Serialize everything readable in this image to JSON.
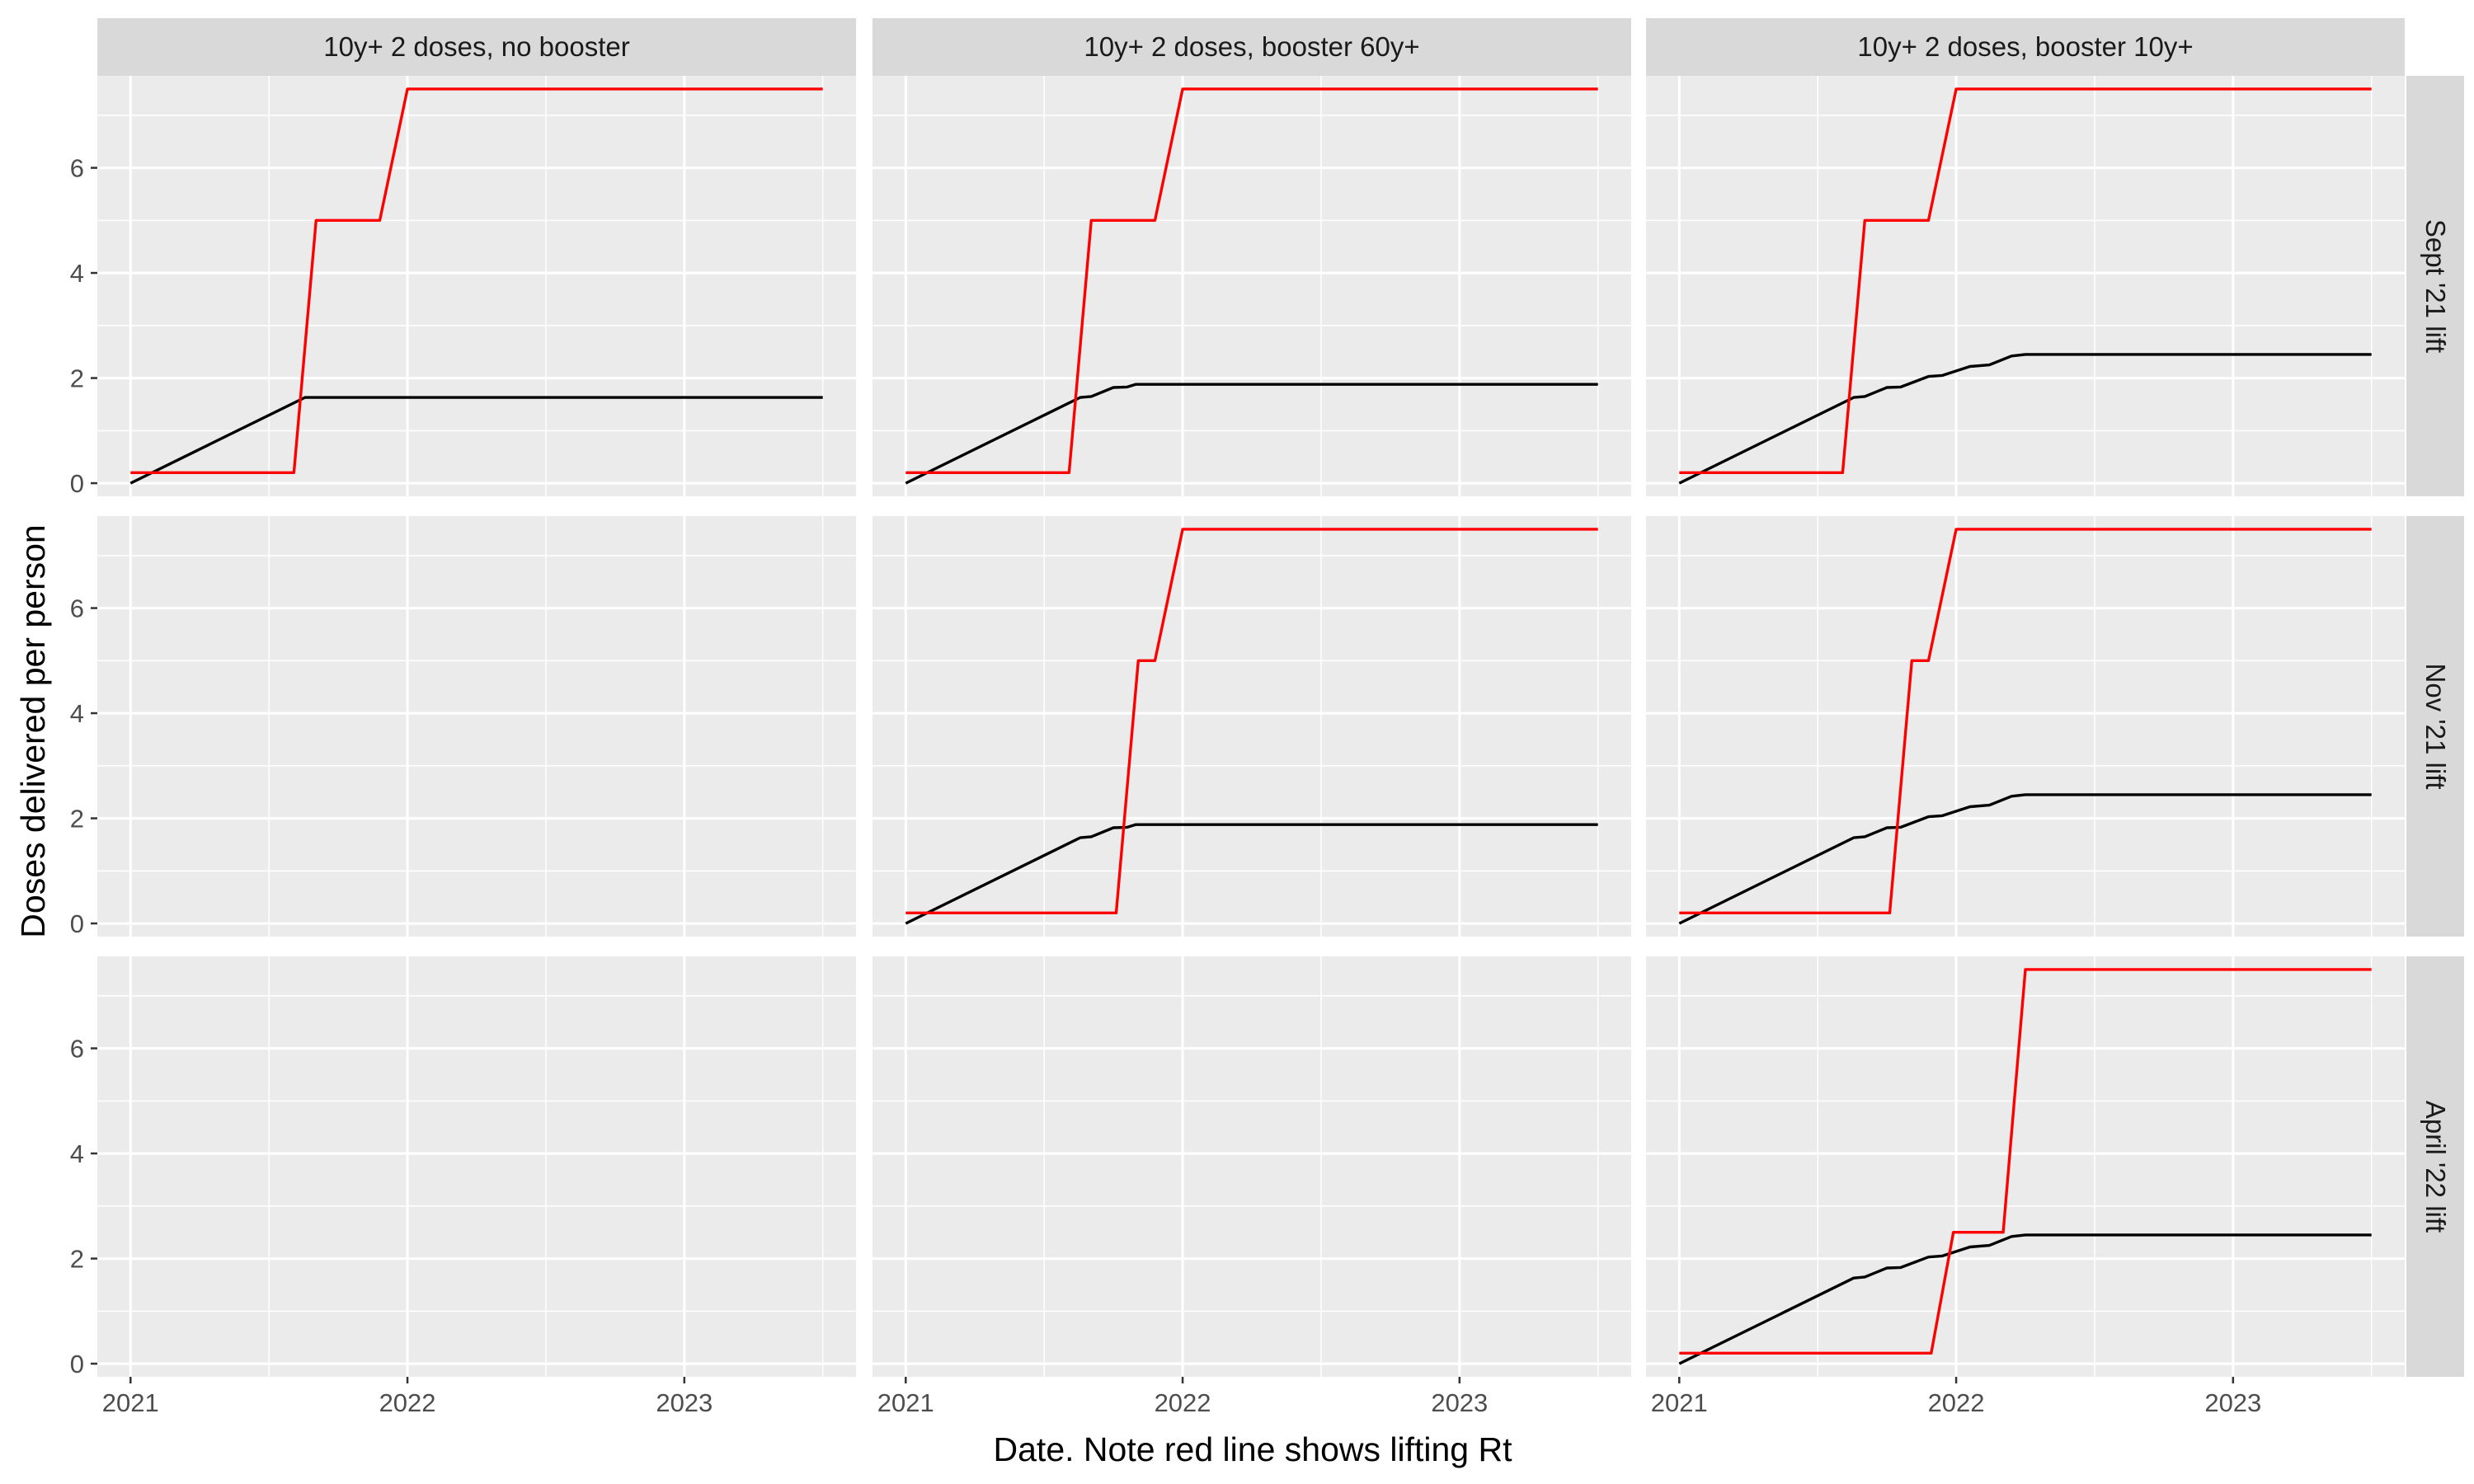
{
  "chart_data": {
    "type": "line",
    "xlabel": "Date. Note red line shows lifting Rt",
    "ylabel": "Doses delivered per person",
    "xlim": [
      2020.88,
      2023.62
    ],
    "ylim": [
      -0.25,
      7.75
    ],
    "x_ticks": [
      2021,
      2022,
      2023
    ],
    "x_tick_labels": [
      "2021",
      "2022",
      "2023"
    ],
    "y_ticks": [
      0,
      2,
      4,
      6
    ],
    "y_tick_labels": [
      "0",
      "2",
      "4",
      "6"
    ],
    "grid": true,
    "columns": [
      "10y+ 2 doses, no booster",
      "10y+ 2 doses, booster 60y+",
      "10y+ 2 doses, booster 10y+"
    ],
    "rows": [
      "Sept '21 lift",
      "Nov '21 lift",
      "April '22 lift"
    ],
    "series_colors": {
      "lifting_rt": "#ff0000",
      "doses": "#000000"
    },
    "panels": [
      {
        "row": 0,
        "col": 0,
        "lifting_rt": {
          "x": [
            2021.0,
            2021.59,
            2021.67,
            2021.9,
            2022.0,
            2023.5
          ],
          "y": [
            0.2,
            0.2,
            5.0,
            5.0,
            7.5,
            7.5
          ]
        },
        "doses": {
          "x": [
            2021.0,
            2021.63,
            2023.5
          ],
          "y": [
            0.0,
            1.63,
            1.63
          ]
        }
      },
      {
        "row": 0,
        "col": 1,
        "lifting_rt": {
          "x": [
            2021.0,
            2021.59,
            2021.67,
            2021.9,
            2022.0,
            2023.5
          ],
          "y": [
            0.2,
            0.2,
            5.0,
            5.0,
            7.5,
            7.5
          ]
        },
        "doses": {
          "x": [
            2021.0,
            2021.63,
            2021.67,
            2021.75,
            2021.8,
            2021.83,
            2023.5
          ],
          "y": [
            0.0,
            1.63,
            1.65,
            1.82,
            1.83,
            1.88,
            1.88
          ]
        }
      },
      {
        "row": 0,
        "col": 2,
        "lifting_rt": {
          "x": [
            2021.0,
            2021.59,
            2021.67,
            2021.9,
            2022.0,
            2023.5
          ],
          "y": [
            0.2,
            0.2,
            5.0,
            5.0,
            7.5,
            7.5
          ]
        },
        "doses": {
          "x": [
            2021.0,
            2021.63,
            2021.67,
            2021.75,
            2021.8,
            2021.9,
            2021.95,
            2022.05,
            2022.12,
            2022.2,
            2022.25,
            2023.5
          ],
          "y": [
            0.0,
            1.63,
            1.65,
            1.82,
            1.83,
            2.03,
            2.05,
            2.22,
            2.25,
            2.42,
            2.45,
            2.45
          ]
        }
      },
      {
        "row": 1,
        "col": 0,
        "lifting_rt": null,
        "doses": null
      },
      {
        "row": 1,
        "col": 1,
        "lifting_rt": {
          "x": [
            2021.0,
            2021.76,
            2021.84,
            2021.9,
            2022.0,
            2023.5
          ],
          "y": [
            0.2,
            0.2,
            5.0,
            5.0,
            7.5,
            7.5
          ]
        },
        "doses": {
          "x": [
            2021.0,
            2021.63,
            2021.67,
            2021.75,
            2021.8,
            2021.83,
            2023.5
          ],
          "y": [
            0.0,
            1.63,
            1.65,
            1.82,
            1.83,
            1.88,
            1.88
          ]
        }
      },
      {
        "row": 1,
        "col": 2,
        "lifting_rt": {
          "x": [
            2021.0,
            2021.76,
            2021.84,
            2021.9,
            2022.0,
            2023.5
          ],
          "y": [
            0.2,
            0.2,
            5.0,
            5.0,
            7.5,
            7.5
          ]
        },
        "doses": {
          "x": [
            2021.0,
            2021.63,
            2021.67,
            2021.75,
            2021.8,
            2021.9,
            2021.95,
            2022.05,
            2022.12,
            2022.2,
            2022.25,
            2023.5
          ],
          "y": [
            0.0,
            1.63,
            1.65,
            1.82,
            1.83,
            2.03,
            2.05,
            2.22,
            2.25,
            2.42,
            2.45,
            2.45
          ]
        }
      },
      {
        "row": 2,
        "col": 0,
        "lifting_rt": null,
        "doses": null
      },
      {
        "row": 2,
        "col": 1,
        "lifting_rt": null,
        "doses": null
      },
      {
        "row": 2,
        "col": 2,
        "lifting_rt": {
          "x": [
            2021.0,
            2021.91,
            2021.99,
            2022.17,
            2022.25,
            2023.5
          ],
          "y": [
            0.2,
            0.2,
            2.5,
            2.5,
            7.5,
            7.5
          ]
        },
        "doses": {
          "x": [
            2021.0,
            2021.63,
            2021.67,
            2021.75,
            2021.8,
            2021.9,
            2021.95,
            2022.05,
            2022.12,
            2022.2,
            2022.25,
            2023.5
          ],
          "y": [
            0.0,
            1.63,
            1.65,
            1.82,
            1.83,
            2.03,
            2.05,
            2.22,
            2.25,
            2.42,
            2.45,
            2.45
          ]
        }
      }
    ]
  }
}
